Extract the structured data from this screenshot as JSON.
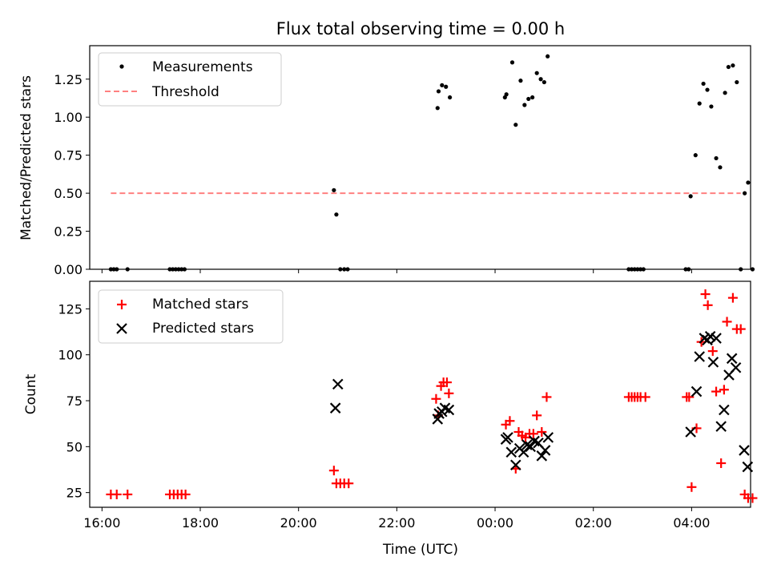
{
  "chart_data": [
    {
      "id": "ratio",
      "type": "scatter",
      "title": "Flux total observing time = 0.00 h",
      "xlabel": "",
      "ylabel": "Matched/Predicted stars",
      "xlim": [
        15.75,
        29.2
      ],
      "ylim": [
        0,
        1.47
      ],
      "yticks": [
        0.0,
        0.25,
        0.5,
        0.75,
        1.0,
        1.25
      ],
      "ytick_labels": [
        "0.00",
        "0.25",
        "0.50",
        "0.75",
        "1.00",
        "1.25"
      ],
      "legend_position": "upper-left",
      "threshold": {
        "name": "Threshold",
        "y": 0.5,
        "x_start": 16.18,
        "x_end": 29.0,
        "color": "#ff8080"
      },
      "series": [
        {
          "name": "Measurements",
          "marker": "dot",
          "color": "#000000",
          "points": [
            [
              16.18,
              0
            ],
            [
              16.24,
              0
            ],
            [
              16.3,
              0
            ],
            [
              16.52,
              0
            ],
            [
              17.38,
              0
            ],
            [
              17.44,
              0
            ],
            [
              17.5,
              0
            ],
            [
              17.56,
              0
            ],
            [
              17.62,
              0
            ],
            [
              17.68,
              0
            ],
            [
              20.72,
              0.52
            ],
            [
              20.77,
              0.36
            ],
            [
              20.85,
              0
            ],
            [
              20.93,
              0
            ],
            [
              21.0,
              0
            ],
            [
              22.83,
              1.06
            ],
            [
              22.85,
              1.17
            ],
            [
              22.92,
              1.21
            ],
            [
              23.0,
              1.2
            ],
            [
              23.08,
              1.13
            ],
            [
              24.2,
              1.13
            ],
            [
              24.23,
              1.15
            ],
            [
              24.35,
              1.36
            ],
            [
              24.42,
              0.95
            ],
            [
              24.52,
              1.24
            ],
            [
              24.6,
              1.08
            ],
            [
              24.68,
              1.12
            ],
            [
              24.76,
              1.13
            ],
            [
              24.85,
              1.29
            ],
            [
              24.93,
              1.25
            ],
            [
              25.0,
              1.23
            ],
            [
              25.07,
              1.4
            ],
            [
              26.72,
              0
            ],
            [
              26.78,
              0
            ],
            [
              26.84,
              0
            ],
            [
              26.9,
              0
            ],
            [
              26.96,
              0
            ],
            [
              27.02,
              0
            ],
            [
              27.88,
              0
            ],
            [
              27.94,
              0
            ],
            [
              27.98,
              0.48
            ],
            [
              28.08,
              0.75
            ],
            [
              28.16,
              1.09
            ],
            [
              28.24,
              1.22
            ],
            [
              28.32,
              1.18
            ],
            [
              28.4,
              1.07
            ],
            [
              28.5,
              0.73
            ],
            [
              28.58,
              0.67
            ],
            [
              28.68,
              1.16
            ],
            [
              28.75,
              1.33
            ],
            [
              28.84,
              1.34
            ],
            [
              28.92,
              1.23
            ],
            [
              29.0,
              0
            ],
            [
              29.08,
              0.5
            ],
            [
              29.15,
              0.57
            ],
            [
              29.24,
              0
            ]
          ]
        }
      ]
    },
    {
      "id": "counts",
      "type": "scatter",
      "xlabel": "Time (UTC)",
      "ylabel": "Count",
      "xlim": [
        15.75,
        29.2
      ],
      "ylim": [
        17,
        140
      ],
      "yticks": [
        25,
        50,
        75,
        100,
        125
      ],
      "ytick_labels": [
        "25",
        "50",
        "75",
        "100",
        "125"
      ],
      "xticks": [
        16,
        18,
        20,
        22,
        24,
        26,
        28
      ],
      "xtick_labels": [
        "16:00",
        "18:00",
        "20:00",
        "22:00",
        "00:00",
        "02:00",
        "04:00"
      ],
      "legend_position": "upper-left",
      "series": [
        {
          "name": "Matched stars",
          "marker": "plus",
          "color": "#ff0000",
          "points": [
            [
              16.18,
              24
            ],
            [
              16.3,
              24
            ],
            [
              16.52,
              24
            ],
            [
              17.38,
              24
            ],
            [
              17.46,
              24
            ],
            [
              17.54,
              24
            ],
            [
              17.62,
              24
            ],
            [
              17.7,
              24
            ],
            [
              20.72,
              37
            ],
            [
              20.77,
              30
            ],
            [
              20.85,
              30
            ],
            [
              20.93,
              30
            ],
            [
              21.02,
              30
            ],
            [
              22.8,
              76
            ],
            [
              22.84,
              67
            ],
            [
              22.9,
              83
            ],
            [
              22.95,
              85
            ],
            [
              23.02,
              85
            ],
            [
              23.06,
              79
            ],
            [
              24.22,
              62
            ],
            [
              24.3,
              64
            ],
            [
              24.42,
              38
            ],
            [
              24.48,
              58
            ],
            [
              24.55,
              56
            ],
            [
              24.62,
              55
            ],
            [
              24.7,
              57
            ],
            [
              24.78,
              57
            ],
            [
              24.85,
              67
            ],
            [
              24.95,
              58
            ],
            [
              25.05,
              77
            ],
            [
              26.72,
              77
            ],
            [
              26.78,
              77
            ],
            [
              26.84,
              77
            ],
            [
              26.9,
              77
            ],
            [
              26.96,
              77
            ],
            [
              27.06,
              77
            ],
            [
              27.9,
              77
            ],
            [
              27.95,
              77
            ],
            [
              28.0,
              28
            ],
            [
              28.1,
              60
            ],
            [
              28.2,
              107
            ],
            [
              28.28,
              133
            ],
            [
              28.33,
              127
            ],
            [
              28.43,
              102
            ],
            [
              28.5,
              80
            ],
            [
              28.6,
              41
            ],
            [
              28.66,
              81
            ],
            [
              28.72,
              118
            ],
            [
              28.84,
              131
            ],
            [
              28.92,
              114
            ],
            [
              29.0,
              114
            ],
            [
              29.08,
              24
            ],
            [
              29.15,
              22
            ],
            [
              29.24,
              22
            ]
          ]
        },
        {
          "name": "Predicted stars",
          "marker": "x",
          "color": "#000000",
          "points": [
            [
              20.75,
              71
            ],
            [
              20.8,
              84
            ],
            [
              22.83,
              65
            ],
            [
              22.86,
              68
            ],
            [
              22.92,
              69
            ],
            [
              22.98,
              71
            ],
            [
              23.06,
              70
            ],
            [
              24.22,
              54
            ],
            [
              24.26,
              55
            ],
            [
              24.33,
              47
            ],
            [
              24.42,
              40
            ],
            [
              24.5,
              49
            ],
            [
              24.58,
              47
            ],
            [
              24.65,
              51
            ],
            [
              24.72,
              50
            ],
            [
              24.8,
              53
            ],
            [
              24.88,
              52
            ],
            [
              24.95,
              45
            ],
            [
              25.02,
              48
            ],
            [
              25.08,
              55
            ],
            [
              27.98,
              58
            ],
            [
              28.1,
              80
            ],
            [
              28.16,
              99
            ],
            [
              28.26,
              109
            ],
            [
              28.32,
              108
            ],
            [
              28.38,
              110
            ],
            [
              28.44,
              96
            ],
            [
              28.5,
              109
            ],
            [
              28.6,
              61
            ],
            [
              28.66,
              70
            ],
            [
              28.76,
              89
            ],
            [
              28.82,
              98
            ],
            [
              28.9,
              93
            ],
            [
              29.07,
              48
            ],
            [
              29.14,
              39
            ]
          ]
        }
      ]
    }
  ]
}
